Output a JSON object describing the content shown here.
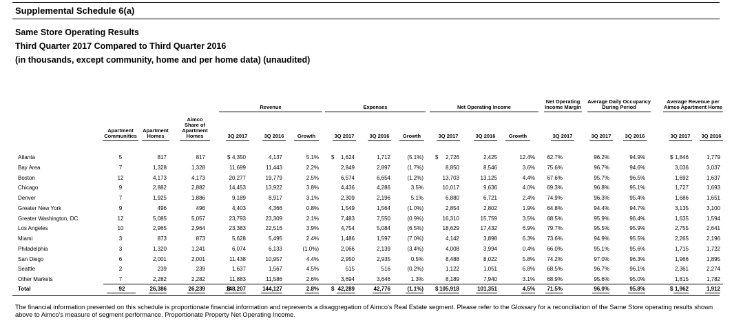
{
  "header": {
    "title": "Supplemental Schedule 6(a)",
    "subtitle_lines": [
      "Same Store Operating Results",
      "Third Quarter 2017 Compared to Third Quarter 2016",
      "(in thousands, except community, home and per home data) (unaudited)"
    ]
  },
  "table": {
    "groups": [
      "Revenue",
      "Expenses",
      "Net Operating Income",
      "Net Operating Income Margin",
      "Average Daily Occupancy During Period",
      "Average Revenue per Aimco Apartment Home"
    ],
    "columns": [
      "Apartment Communities",
      "Apartment Homes",
      "Aimco Share of Apartment Homes",
      "3Q 2017",
      "3Q 2016",
      "Growth",
      "3Q 2017",
      "3Q 2016",
      "Growth",
      "3Q 2017",
      "3Q 2016",
      "Growth",
      "3Q 2017",
      "3Q 2017",
      "3Q 2016",
      "3Q 2017",
      "3Q 2016"
    ],
    "currency_symbol": "$",
    "rows": [
      {
        "name": "Atlanta",
        "cells": [
          "5",
          "817",
          "817",
          "4,350",
          "4,137",
          "5.1%",
          "1,624",
          "1,712",
          "(5.1%)",
          "2,726",
          "2,425",
          "12.4%",
          "62.7%",
          "96.2%",
          "94.9%",
          "1,846",
          "1,779"
        ]
      },
      {
        "name": "Bay Area",
        "cells": [
          "7",
          "1,328",
          "1,328",
          "11,699",
          "11,443",
          "2.2%",
          "2,849",
          "2,897",
          "(1.7%)",
          "8,850",
          "8,546",
          "3.6%",
          "75.6%",
          "96.7%",
          "94.6%",
          "3,036",
          "3,037"
        ]
      },
      {
        "name": "Boston",
        "cells": [
          "12",
          "4,173",
          "4,173",
          "20,277",
          "19,779",
          "2.5%",
          "6,574",
          "6,654",
          "(1.2%)",
          "13,703",
          "13,125",
          "4.4%",
          "67.6%",
          "95.7%",
          "96.5%",
          "1,692",
          "1,637"
        ]
      },
      {
        "name": "Chicago",
        "cells": [
          "9",
          "2,882",
          "2,882",
          "14,453",
          "13,922",
          "3.8%",
          "4,436",
          "4,286",
          "3.5%",
          "10,017",
          "9,636",
          "4.0%",
          "69.3%",
          "96.8%",
          "95.1%",
          "1,727",
          "1,693"
        ]
      },
      {
        "name": "Denver",
        "cells": [
          "7",
          "1,925",
          "1,886",
          "9,189",
          "8,917",
          "3.1%",
          "2,309",
          "2,196",
          "5.1%",
          "6,880",
          "6,721",
          "2.4%",
          "74.9%",
          "96.3%",
          "95.4%",
          "1,686",
          "1,651"
        ]
      },
      {
        "name": "Greater New York",
        "cells": [
          "9",
          "496",
          "496",
          "4,403",
          "4,366",
          "0.8%",
          "1,549",
          "1,564",
          "(1.0%)",
          "2,854",
          "2,802",
          "1.9%",
          "64.8%",
          "94.4%",
          "94.7%",
          "3,135",
          "3,100"
        ]
      },
      {
        "name": "Greater Washington, DC",
        "cells": [
          "12",
          "5,085",
          "5,057",
          "23,793",
          "23,309",
          "2.1%",
          "7,483",
          "7,550",
          "(0.9%)",
          "16,310",
          "15,759",
          "3.5%",
          "68.5%",
          "95.9%",
          "96.4%",
          "1,635",
          "1,594"
        ]
      },
      {
        "name": "Los Angeles",
        "cells": [
          "10",
          "2,965",
          "2,964",
          "23,383",
          "22,516",
          "3.9%",
          "4,754",
          "5,084",
          "(6.5%)",
          "18,629",
          "17,432",
          "6.9%",
          "79.7%",
          "95.5%",
          "95.9%",
          "2,755",
          "2,641"
        ]
      },
      {
        "name": "Miami",
        "cells": [
          "3",
          "873",
          "873",
          "5,628",
          "5,495",
          "2.4%",
          "1,486",
          "1,597",
          "(7.0%)",
          "4,142",
          "3,898",
          "6.3%",
          "73.6%",
          "94.9%",
          "95.5%",
          "2,265",
          "2,196"
        ]
      },
      {
        "name": "Philadelphia",
        "cells": [
          "3",
          "1,320",
          "1,241",
          "6,074",
          "6,133",
          "(1.0%)",
          "2,066",
          "2,139",
          "(3.4%)",
          "4,008",
          "3,994",
          "0.4%",
          "66.0%",
          "95.1%",
          "95.6%",
          "1,715",
          "1,722"
        ]
      },
      {
        "name": "San Diego",
        "cells": [
          "6",
          "2,001",
          "2,001",
          "11,438",
          "10,957",
          "4.4%",
          "2,950",
          "2,935",
          "0.5%",
          "8,488",
          "8,022",
          "5.8%",
          "74.2%",
          "97.0%",
          "96.3%",
          "1,966",
          "1,895"
        ]
      },
      {
        "name": "Seattle",
        "cells": [
          "2",
          "239",
          "239",
          "1,637",
          "1,567",
          "4.5%",
          "515",
          "516",
          "(0.2%)",
          "1,122",
          "1,051",
          "6.8%",
          "68.5%",
          "96.7%",
          "96.1%",
          "2,361",
          "2,274"
        ]
      },
      {
        "name": "Other Markets",
        "cells": [
          "7",
          "2,282",
          "2,282",
          "11,883",
          "11,586",
          "2.6%",
          "3,694",
          "3,646",
          "1.3%",
          "8,189",
          "7,940",
          "3.1%",
          "68.9%",
          "95.6%",
          "95.0%",
          "1,815",
          "1,782"
        ]
      },
      {
        "name": "Total",
        "cells": [
          "92",
          "26,386",
          "26,239",
          "148,207",
          "144,127",
          "2.8%",
          "42,289",
          "42,776",
          "(1.1%)",
          "105,918",
          "101,351",
          "4.5%",
          "71.5%",
          "96.0%",
          "95.8%",
          "1,962",
          "1,912"
        ]
      }
    ]
  },
  "footnote": "The financial information presented on this schedule is proportionate financial information and represents a disaggregation of Aimco's Real Estate segment. Please refer to the Glossary for a reconciliation of the Same Store operating results shown above to Aimco's measure of segment performance, Proportionate Property Net Operating Income."
}
